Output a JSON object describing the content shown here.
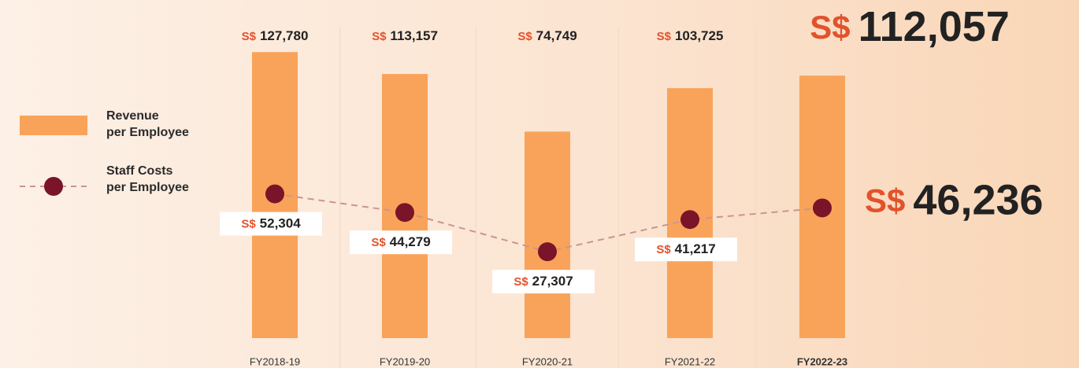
{
  "chart_data": {
    "type": "bar",
    "currency": "S$",
    "categories": [
      "FY2018-19",
      "FY2019-20",
      "FY2020-21",
      "FY2021-22",
      "FY2022-23"
    ],
    "series": [
      {
        "name": "Revenue\nper Employee",
        "color": "#f9a35a",
        "type": "bar",
        "values": [
          127780,
          113157,
          74749,
          103725,
          112057
        ],
        "value_labels": [
          "127,780",
          "113,157",
          "74,749",
          "103,725",
          "112,057"
        ]
      },
      {
        "name": "Staff Costs\nper Employee",
        "color": "#7a1429",
        "type": "line",
        "axis": "y2",
        "values": [
          52304,
          44279,
          27307,
          41217,
          46236
        ],
        "value_labels": [
          "52,304",
          "44,279",
          "27,307",
          "41,217",
          "46,236"
        ]
      }
    ],
    "ylim": [
      -63000,
      130000
    ],
    "y2lim": [
      -10000,
      115000
    ]
  }
}
